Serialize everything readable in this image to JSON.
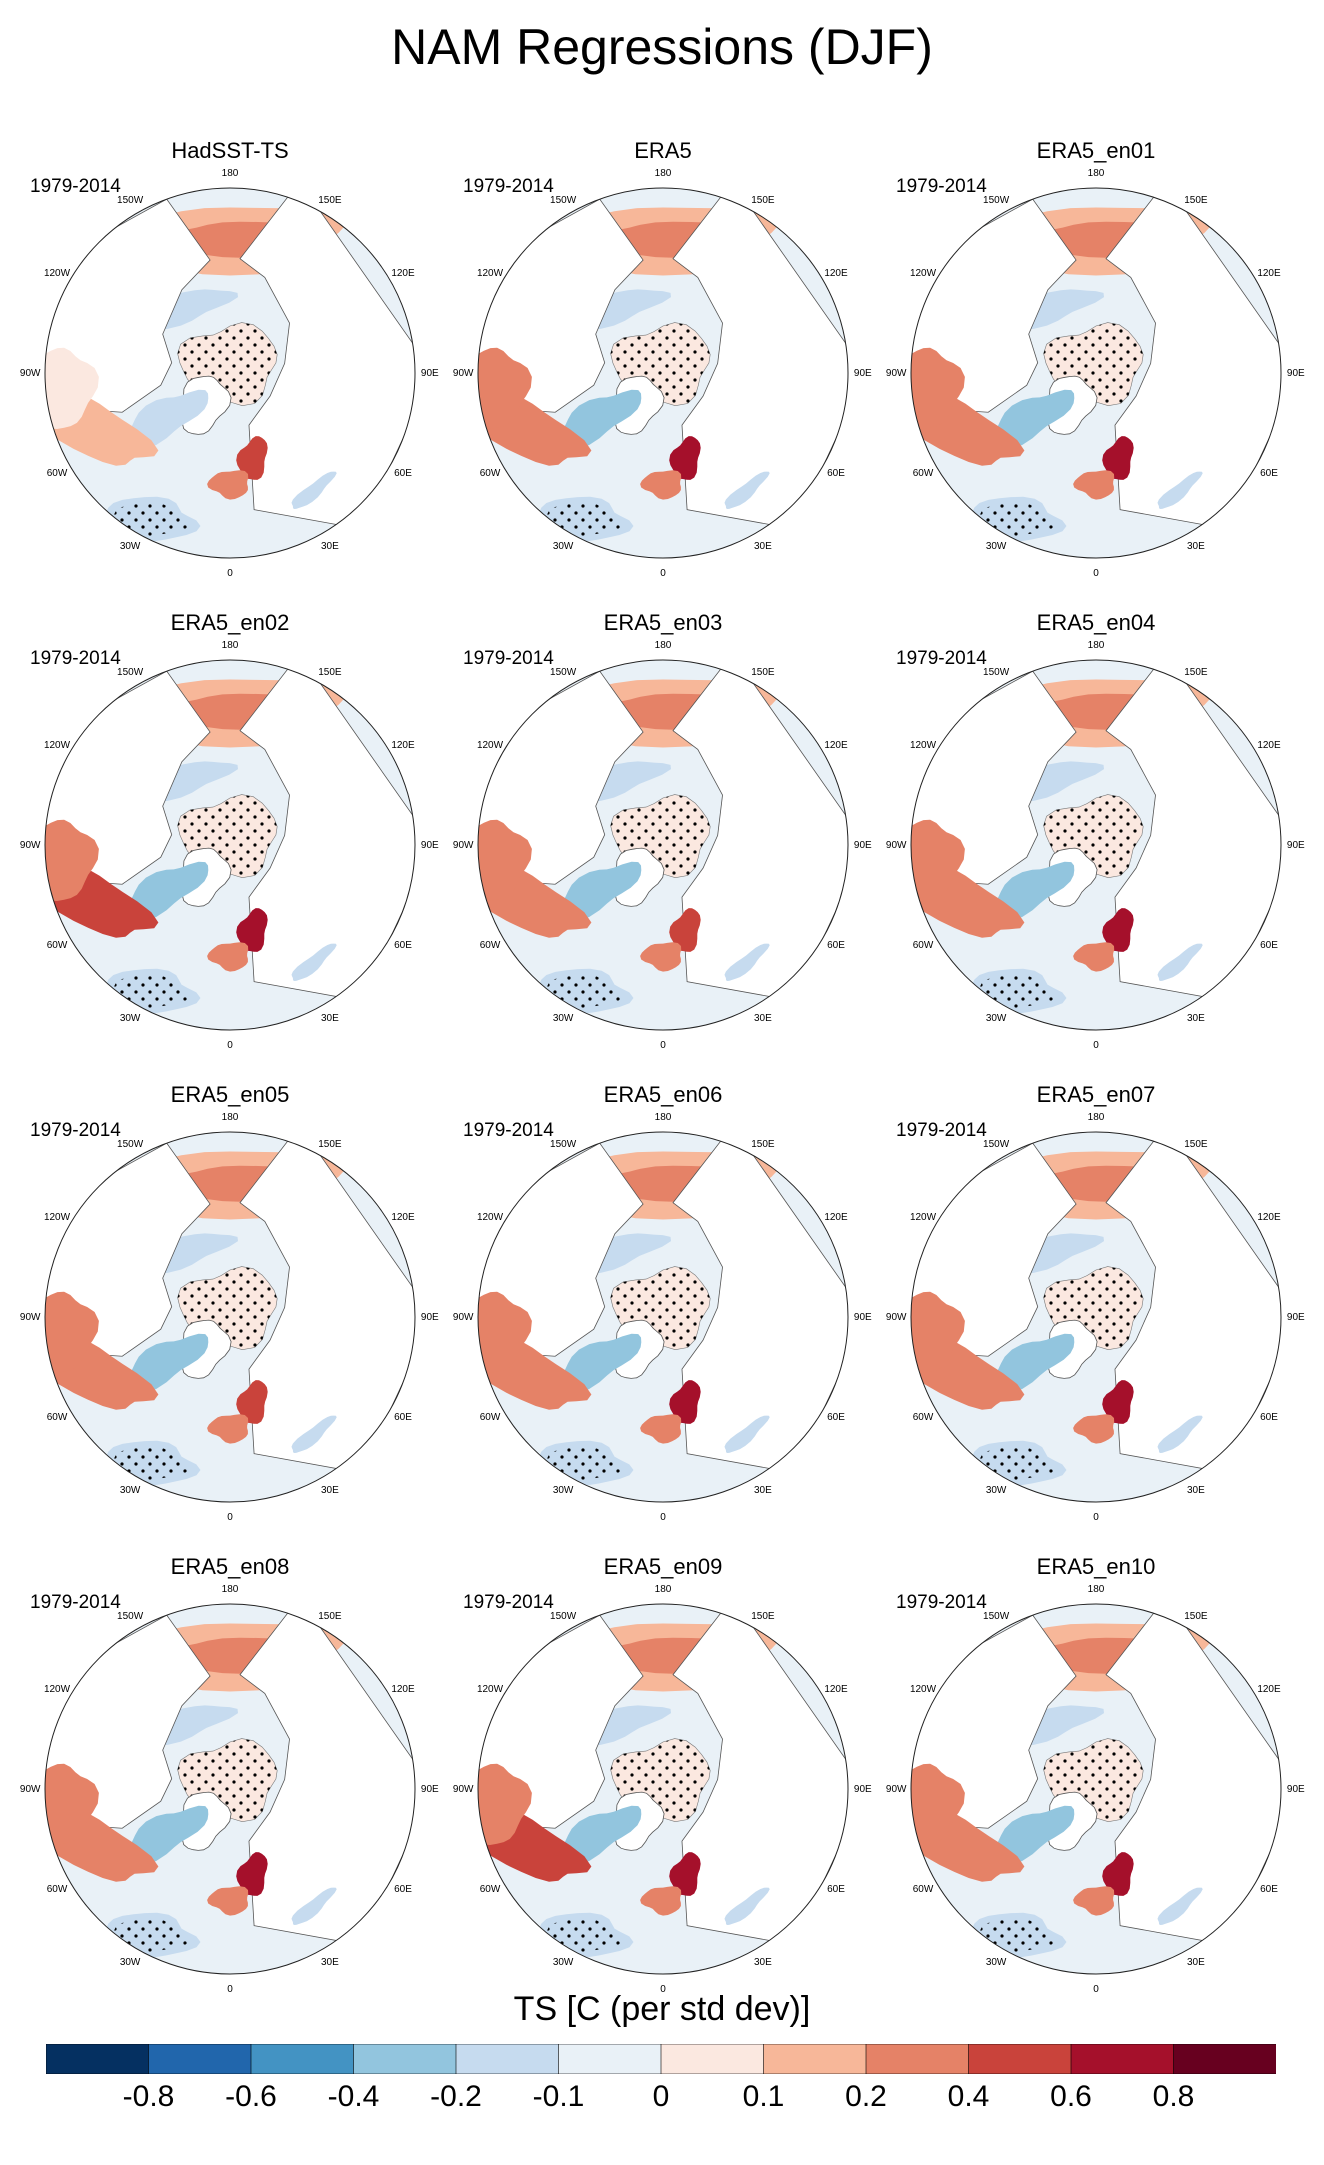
{
  "title": "NAM Regressions (DJF)",
  "chart_data": {
    "type": "heatmap",
    "projection": "north polar stereographic",
    "variable": "TS",
    "season": "DJF",
    "colorbar_title": "TS [C (per std dev)]",
    "colorbar_levels": [
      "-0.8",
      "-0.6",
      "-0.4",
      "-0.2",
      "-0.1",
      "0",
      "0.1",
      "0.2",
      "0.4",
      "0.6",
      "0.8"
    ],
    "colorbar_colors": [
      "#053061",
      "#2166ac",
      "#4393c3",
      "#92c5de",
      "#c6dbef",
      "#e9f1f7",
      "#fbe8e0",
      "#f7b799",
      "#e58267",
      "#c9433b",
      "#a5102b",
      "#67001f"
    ],
    "longitude_labels": [
      "180",
      "150E",
      "120E",
      "90E",
      "60E",
      "30E",
      "0",
      "30W",
      "60W",
      "90W",
      "120W",
      "150W"
    ],
    "stipple_meaning": "statistically significant",
    "panels": [
      {
        "name": "HadSST-TS",
        "period": "1979-2014",
        "pacific_anomaly": 0.25,
        "sw_atlantic_anomaly": 0.1,
        "labrador_anomaly": -0.15,
        "europe_anomaly": 0.45,
        "arctic_anomaly": 0.05
      },
      {
        "name": "ERA5",
        "period": "1979-2014",
        "pacific_anomaly": 0.3,
        "sw_atlantic_anomaly": 0.35,
        "labrador_anomaly": -0.3,
        "europe_anomaly": 0.6,
        "arctic_anomaly": 0.05
      },
      {
        "name": "ERA5_en01",
        "period": "1979-2014",
        "pacific_anomaly": 0.3,
        "sw_atlantic_anomaly": 0.35,
        "labrador_anomaly": -0.3,
        "europe_anomaly": 0.6,
        "arctic_anomaly": 0.05
      },
      {
        "name": "ERA5_en02",
        "period": "1979-2014",
        "pacific_anomaly": 0.35,
        "sw_atlantic_anomaly": 0.4,
        "labrador_anomaly": -0.35,
        "europe_anomaly": 0.6,
        "arctic_anomaly": 0.05
      },
      {
        "name": "ERA5_en03",
        "period": "1979-2014",
        "pacific_anomaly": 0.3,
        "sw_atlantic_anomaly": 0.35,
        "labrador_anomaly": -0.3,
        "europe_anomaly": 0.55,
        "arctic_anomaly": 0.05
      },
      {
        "name": "ERA5_en04",
        "period": "1979-2014",
        "pacific_anomaly": 0.3,
        "sw_atlantic_anomaly": 0.35,
        "labrador_anomaly": -0.35,
        "europe_anomaly": 0.6,
        "arctic_anomaly": 0.05
      },
      {
        "name": "ERA5_en05",
        "period": "1979-2014",
        "pacific_anomaly": 0.3,
        "sw_atlantic_anomaly": 0.3,
        "labrador_anomaly": -0.35,
        "europe_anomaly": 0.55,
        "arctic_anomaly": 0.05
      },
      {
        "name": "ERA5_en06",
        "period": "1979-2014",
        "pacific_anomaly": 0.35,
        "sw_atlantic_anomaly": 0.35,
        "labrador_anomaly": -0.3,
        "europe_anomaly": 0.6,
        "arctic_anomaly": 0.05
      },
      {
        "name": "ERA5_en07",
        "period": "1979-2014",
        "pacific_anomaly": 0.35,
        "sw_atlantic_anomaly": 0.35,
        "labrador_anomaly": -0.3,
        "europe_anomaly": 0.6,
        "arctic_anomaly": 0.05
      },
      {
        "name": "ERA5_en08",
        "period": "1979-2014",
        "pacific_anomaly": 0.3,
        "sw_atlantic_anomaly": 0.35,
        "labrador_anomaly": -0.35,
        "europe_anomaly": 0.6,
        "arctic_anomaly": 0.05
      },
      {
        "name": "ERA5_en09",
        "period": "1979-2014",
        "pacific_anomaly": 0.3,
        "sw_atlantic_anomaly": 0.4,
        "labrador_anomaly": -0.3,
        "europe_anomaly": 0.6,
        "arctic_anomaly": 0.05
      },
      {
        "name": "ERA5_en10",
        "period": "1979-2014",
        "pacific_anomaly": 0.3,
        "sw_atlantic_anomaly": 0.35,
        "labrador_anomaly": -0.3,
        "europe_anomaly": 0.6,
        "arctic_anomaly": 0.05
      }
    ]
  }
}
